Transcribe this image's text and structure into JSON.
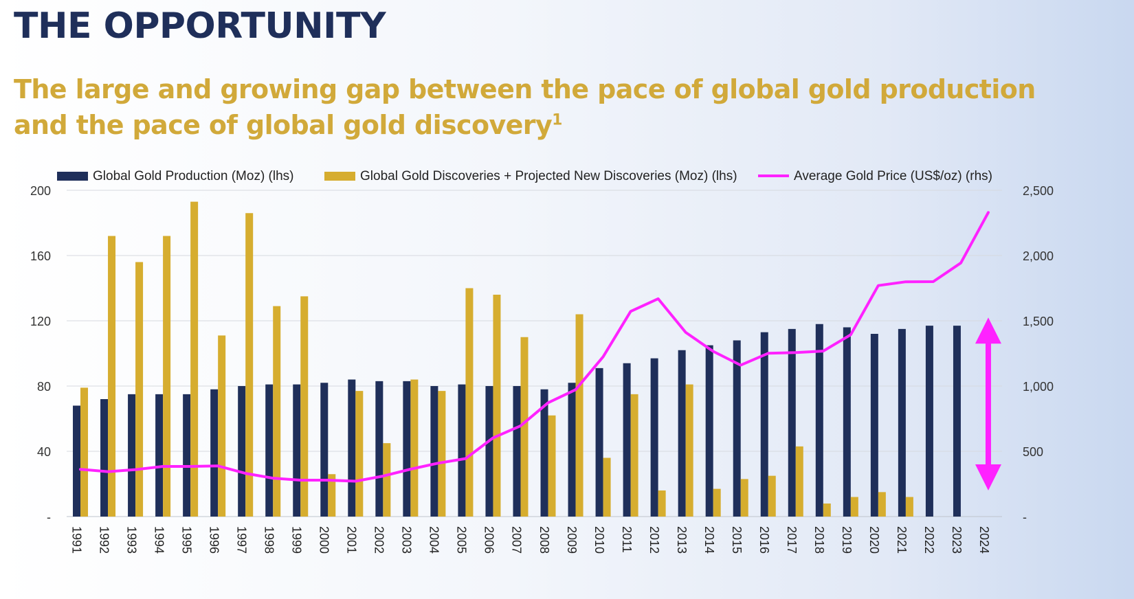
{
  "header": {
    "title": "THE OPPORTUNITY",
    "subtitle_line1": "The large and growing gap between the pace of global gold production",
    "subtitle_line2": "and the pace of global gold discovery",
    "subtitle_superscript": "1"
  },
  "colors": {
    "title": "#1f2f5a",
    "subtitle": "#d1a93a",
    "production": "#1f2f5a",
    "discoveries": "#d6ad2f",
    "price": "#ff22ff",
    "grid": "#d6d9df"
  },
  "chart_data": {
    "type": "bar",
    "categories": [
      "1991",
      "1992",
      "1993",
      "1994",
      "1995",
      "1996",
      "1997",
      "1998",
      "1999",
      "2000",
      "2001",
      "2002",
      "2003",
      "2004",
      "2005",
      "2006",
      "2007",
      "2008",
      "2009",
      "2010",
      "2011",
      "2012",
      "2013",
      "2014",
      "2015",
      "2016",
      "2017",
      "2018",
      "2019",
      "2020",
      "2021",
      "2022",
      "2023",
      "2024"
    ],
    "series": [
      {
        "name": "Global Gold Production (Moz) (lhs)",
        "type": "bar",
        "axis": "left",
        "values": [
          68,
          72,
          75,
          75,
          75,
          78,
          80,
          81,
          81,
          82,
          84,
          83,
          83,
          80,
          81,
          80,
          80,
          78,
          82,
          91,
          94,
          97,
          102,
          105,
          108,
          113,
          115,
          118,
          116,
          112,
          115,
          117,
          117,
          null
        ]
      },
      {
        "name": "Global Gold Discoveries + Projected New Discoveries (Moz) (lhs)",
        "type": "bar",
        "axis": "left",
        "values": [
          79,
          172,
          156,
          172,
          193,
          111,
          186,
          129,
          135,
          26,
          77,
          45,
          84,
          77,
          140,
          136,
          110,
          62,
          124,
          36,
          75,
          16,
          81,
          17,
          23,
          25,
          43,
          8,
          12,
          15,
          12,
          null,
          null,
          null
        ]
      },
      {
        "name": "Average Gold Price (US$/oz) (rhs)",
        "type": "line",
        "axis": "right",
        "values": [
          362,
          344,
          360,
          384,
          384,
          388,
          331,
          294,
          279,
          279,
          271,
          310,
          363,
          409,
          444,
          603,
          695,
          872,
          972,
          1225,
          1572,
          1669,
          1411,
          1266,
          1160,
          1251,
          1257,
          1268,
          1393,
          1770,
          1799,
          1800,
          1943,
          2330
        ]
      }
    ],
    "left_axis": {
      "ylim": [
        0,
        200
      ],
      "ticks": [
        0,
        40,
        80,
        120,
        160,
        200
      ],
      "tick_labels": [
        "-",
        "40",
        "80",
        "120",
        "160",
        "200"
      ]
    },
    "right_axis": {
      "ylim": [
        0,
        2500
      ],
      "ticks": [
        0,
        500,
        1000,
        1500,
        2000,
        2500
      ],
      "tick_labels": [
        "-",
        "500",
        "1,000",
        "1,500",
        "2,000",
        "2,500"
      ]
    },
    "grid": true,
    "legend_position": "top",
    "annotation": "double-headed-arrow-gap",
    "annotation_span": [
      122,
      16
    ]
  }
}
